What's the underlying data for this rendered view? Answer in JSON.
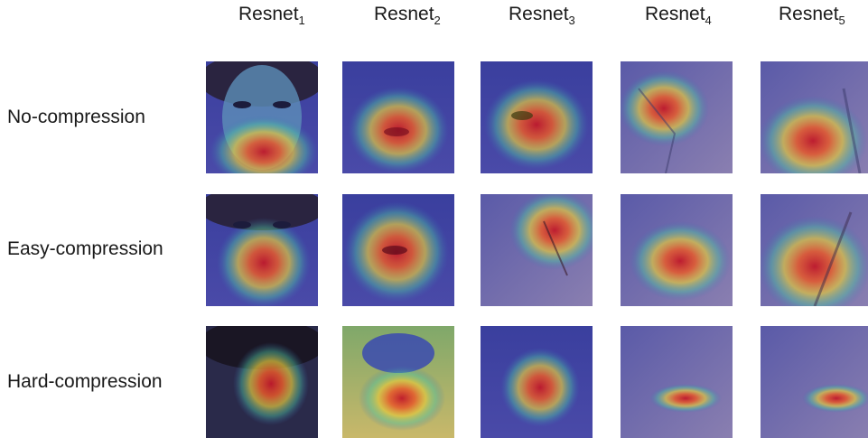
{
  "columns": [
    {
      "base": "Resnet",
      "sub": "1"
    },
    {
      "base": "Resnet",
      "sub": "2"
    },
    {
      "base": "Resnet",
      "sub": "3"
    },
    {
      "base": "Resnet",
      "sub": "4"
    },
    {
      "base": "Resnet",
      "sub": "5"
    }
  ],
  "rows": [
    {
      "label": "No-compression"
    },
    {
      "label": "Easy-compression"
    },
    {
      "label": "Hard-compression"
    }
  ]
}
